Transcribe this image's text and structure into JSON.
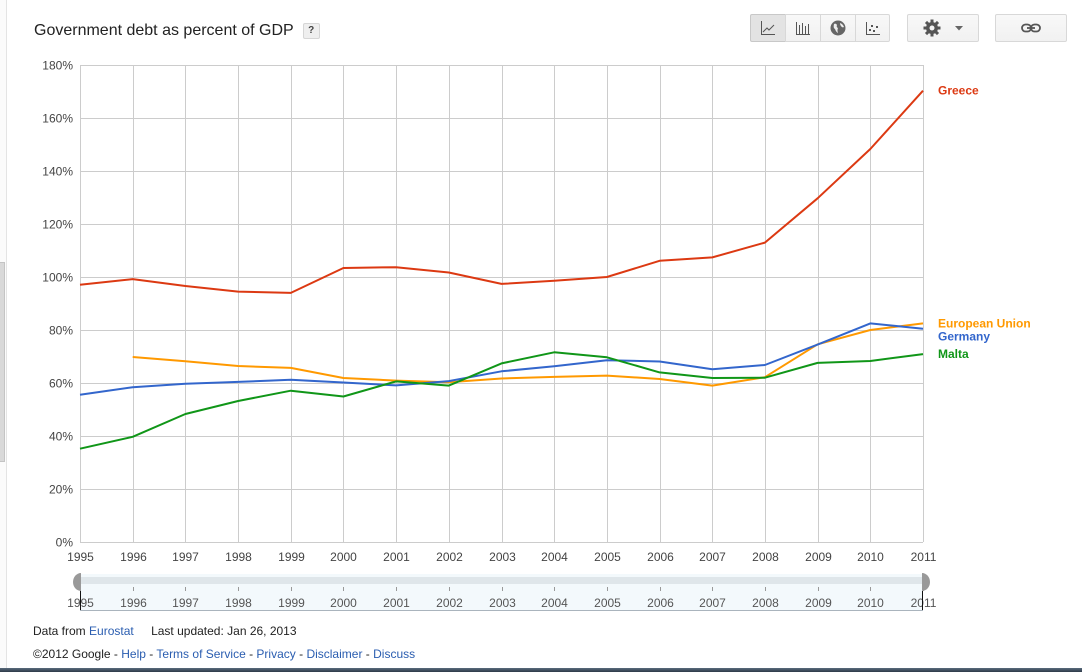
{
  "header": {
    "title": "Government debt as percent of GDP",
    "help_label": "?"
  },
  "toolbar": {
    "chart_types": [
      {
        "name": "line-chart",
        "icon": "line-chart-icon",
        "selected": true
      },
      {
        "name": "bar-chart",
        "icon": "bar-chart-icon",
        "selected": false
      },
      {
        "name": "map-chart",
        "icon": "globe-icon",
        "selected": false
      },
      {
        "name": "scatter-chart",
        "icon": "scatter-chart-icon",
        "selected": false
      }
    ],
    "settings_icon": "gear-icon",
    "settings_dropdown_icon": "caret-down-icon",
    "link_icon": "link-icon"
  },
  "chart_data": {
    "type": "line",
    "title": "Government debt as percent of GDP",
    "xlabel": "",
    "ylabel": "",
    "x": [
      1995,
      1996,
      1997,
      1998,
      1999,
      2000,
      2001,
      2002,
      2003,
      2004,
      2005,
      2006,
      2007,
      2008,
      2009,
      2010,
      2011
    ],
    "x_tick_labels": [
      "1995",
      "1996",
      "1997",
      "1998",
      "1999",
      "2000",
      "2001",
      "2002",
      "2003",
      "2004",
      "2005",
      "2006",
      "2007",
      "2008",
      "2009",
      "2010",
      "2011"
    ],
    "ylim": [
      0,
      180
    ],
    "y_ticks": [
      0,
      20,
      40,
      60,
      80,
      100,
      120,
      140,
      160,
      180
    ],
    "y_tick_labels": [
      "0%",
      "20%",
      "40%",
      "60%",
      "80%",
      "100%",
      "120%",
      "140%",
      "160%",
      "180%"
    ],
    "grid": true,
    "legend_placement": "right-end-labels",
    "series": [
      {
        "name": "Greece",
        "color": "#dc3912",
        "values": [
          97.1,
          99.2,
          96.6,
          94.5,
          94.0,
          103.4,
          103.7,
          101.7,
          97.4,
          98.6,
          100.0,
          106.1,
          107.4,
          113.0,
          129.7,
          148.3,
          170.3
        ]
      },
      {
        "name": "European Union",
        "color": "#ff9900",
        "values": [
          null,
          69.8,
          68.2,
          66.4,
          65.7,
          61.9,
          60.9,
          60.3,
          61.7,
          62.3,
          62.8,
          61.5,
          59.0,
          62.2,
          74.6,
          80.0,
          82.5
        ]
      },
      {
        "name": "Germany",
        "color": "#3366cc",
        "values": [
          55.6,
          58.4,
          59.7,
          60.4,
          61.2,
          60.2,
          59.1,
          60.7,
          64.4,
          66.3,
          68.6,
          68.1,
          65.2,
          66.8,
          74.5,
          82.5,
          80.5
        ]
      },
      {
        "name": "Malta",
        "color": "#109618",
        "values": [
          35.2,
          39.7,
          48.3,
          53.2,
          57.1,
          54.9,
          60.6,
          59.0,
          67.4,
          71.6,
          69.7,
          64.0,
          61.9,
          62.0,
          67.6,
          68.3,
          70.9
        ]
      }
    ]
  },
  "time_slider": {
    "start_label": "1995",
    "end_label": "2011",
    "tick_labels": [
      "1995",
      "1996",
      "1997",
      "1998",
      "1999",
      "2000",
      "2001",
      "2002",
      "2003",
      "2004",
      "2005",
      "2006",
      "2007",
      "2008",
      "2009",
      "2010",
      "2011"
    ]
  },
  "footer": {
    "data_from_label": "Data from",
    "data_source_link": "Eurostat",
    "last_updated": "Last updated: Jan 26, 2013",
    "copyright": "©2012 Google",
    "separator": " - ",
    "links": [
      "Help",
      "Terms of Service",
      "Privacy",
      "Disclaimer",
      "Discuss"
    ]
  }
}
